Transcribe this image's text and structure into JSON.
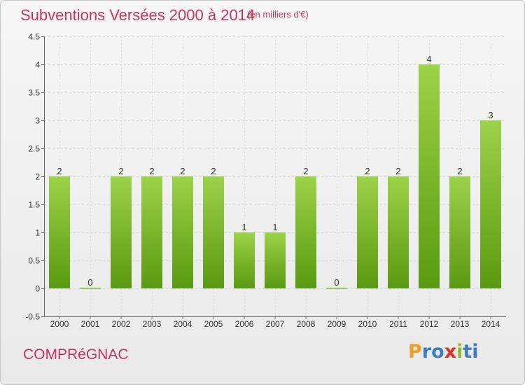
{
  "header": {
    "title": "Subventions Versées 2000 à 2014",
    "subtitle": "(en milliers d'€)"
  },
  "footer": {
    "commune": "COMPRéGNAC",
    "brand_letters": [
      "P",
      "r",
      "o",
      "x",
      "i",
      "t",
      "i"
    ],
    "brand_colors": [
      "#f0a020",
      "#3a7fc8",
      "#3a7fc8",
      "#e03020",
      "#8bbf2a",
      "#3a7fc8",
      "#3a7fc8"
    ]
  },
  "colors": {
    "bar_top": "#9cd24a",
    "bar_bottom": "#5a9a10",
    "text": "#333333",
    "accent": "#c8345a"
  },
  "chart_data": {
    "type": "bar",
    "categories": [
      "2000",
      "2001",
      "2002",
      "2003",
      "2004",
      "2005",
      "2006",
      "2007",
      "2008",
      "2009",
      "2010",
      "2011",
      "2012",
      "2013",
      "2014"
    ],
    "values": [
      2,
      0,
      2,
      2,
      2,
      2,
      1,
      1,
      2,
      0,
      2,
      2,
      4,
      2,
      3
    ],
    "data_labels": [
      "2",
      "0",
      "2",
      "2",
      "2",
      "2",
      "1",
      "1",
      "2",
      "0",
      "2",
      "2",
      "4",
      "2",
      "3"
    ],
    "ylim": [
      -0.5,
      4.5
    ],
    "yticks": [
      -0.5,
      0,
      0.5,
      1,
      1.5,
      2,
      2.5,
      3,
      3.5,
      4,
      4.5
    ],
    "ytick_labels": [
      "-0.5",
      "0",
      "0.5",
      "1",
      "1.5",
      "2",
      "2.5",
      "3",
      "3.5",
      "4",
      "4.5"
    ],
    "grid": true,
    "title": "Subventions Versées 2000 à 2014",
    "xlabel": "",
    "ylabel": ""
  }
}
